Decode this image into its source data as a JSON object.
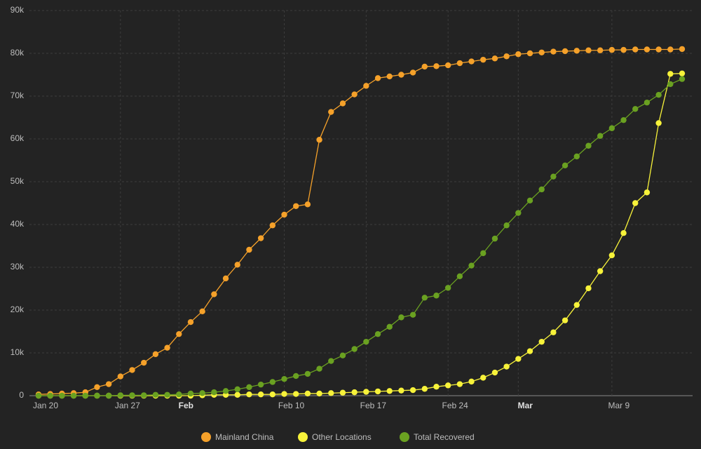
{
  "chart_data": {
    "type": "line",
    "categories": [
      "Jan 20",
      null,
      null,
      null,
      null,
      null,
      null,
      "Jan 27",
      null,
      null,
      null,
      null,
      "Feb",
      null,
      null,
      null,
      null,
      null,
      null,
      null,
      null,
      "Feb 10",
      null,
      null,
      null,
      null,
      null,
      null,
      "Feb 17",
      null,
      null,
      null,
      null,
      null,
      null,
      "Feb 24",
      null,
      null,
      null,
      null,
      null,
      "Mar",
      null,
      null,
      null,
      null,
      null,
      null,
      null,
      "Mar 9",
      null,
      null,
      null,
      null,
      null,
      null
    ],
    "series": [
      {
        "name": "Mainland China",
        "color": "#f5a12a",
        "values": [
          300,
          400,
          500,
          600,
          800,
          2000,
          2700,
          4500,
          6000,
          7700,
          9700,
          11200,
          14400,
          17200,
          19700,
          23700,
          27400,
          30600,
          34100,
          36800,
          39800,
          42300,
          44300,
          44700,
          59800,
          66300,
          68300,
          70400,
          72400,
          74200,
          74600,
          75000,
          75500,
          76900,
          77000,
          77200,
          77700,
          78100,
          78500,
          78800,
          79300,
          79800,
          80000,
          80200,
          80400,
          80500,
          80600,
          80700,
          80700,
          80800,
          80800,
          80900,
          80900,
          80900,
          80900,
          81000
        ]
      },
      {
        "name": "Other Locations",
        "color": "#f7f23a",
        "values": [
          0,
          0,
          0,
          0,
          0,
          0,
          0,
          0,
          0,
          0,
          0,
          0,
          0,
          0,
          100,
          200,
          200,
          200,
          300,
          300,
          300,
          400,
          400,
          500,
          500,
          600,
          700,
          800,
          900,
          1000,
          1100,
          1200,
          1300,
          1600,
          2100,
          2400,
          2700,
          3300,
          4200,
          5400,
          6800,
          8600,
          10400,
          12600,
          14800,
          17600,
          21200,
          25100,
          29100,
          32800,
          38000,
          45000,
          47500,
          63700,
          75200,
          75300
        ]
      },
      {
        "name": "Total Recovered",
        "color": "#6aa121",
        "values": [
          0,
          0,
          0,
          0,
          0,
          0,
          0,
          100,
          100,
          100,
          200,
          200,
          300,
          500,
          600,
          800,
          1100,
          1500,
          2000,
          2600,
          3200,
          3900,
          4600,
          5100,
          6300,
          8100,
          9400,
          10900,
          12600,
          14400,
          16100,
          18300,
          18900,
          22900,
          23400,
          25200,
          27900,
          30400,
          33300,
          36700,
          39800,
          42700,
          45600,
          48200,
          51200,
          53800,
          55900,
          58400,
          60700,
          62500,
          64400,
          67000,
          68500,
          70300,
          72800,
          74000
        ]
      }
    ],
    "ylim": [
      0,
      90000
    ],
    "yticks": [
      0,
      {
        "value": 10000,
        "label": "10k"
      },
      {
        "value": 20000,
        "label": "20k"
      },
      {
        "value": 30000,
        "label": "30k"
      },
      {
        "value": 40000,
        "label": "40k"
      },
      {
        "value": 50000,
        "label": "50k"
      },
      {
        "value": 60000,
        "label": "60k"
      },
      {
        "value": 70000,
        "label": "70k"
      },
      {
        "value": 80000,
        "label": "80k"
      },
      {
        "value": 90000,
        "label": "90k"
      }
    ],
    "grid": true,
    "legend": "bottom"
  }
}
